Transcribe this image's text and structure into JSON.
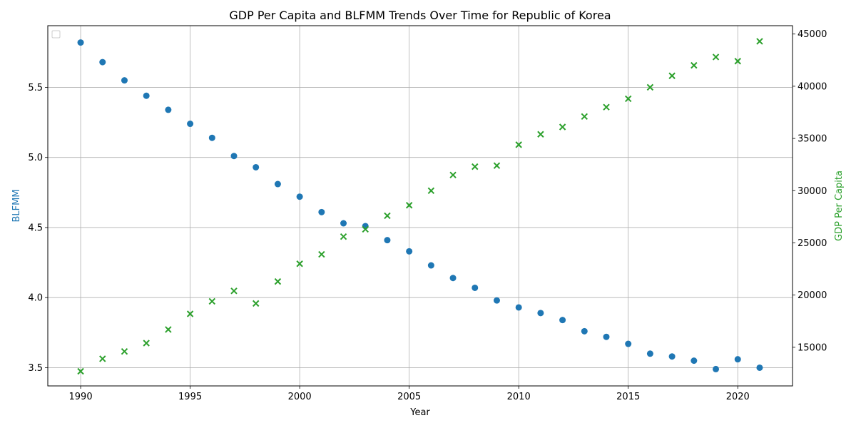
{
  "chart_data": {
    "type": "scatter",
    "title": "GDP Per Capita and BLFMM Trends Over Time for Republic of Korea",
    "xlabel": "Year",
    "ylabel_left": "BLFMM",
    "ylabel_right": "GDP Per Capita",
    "xlim": [
      1988.5,
      2022.5
    ],
    "ylim_left": [
      3.37,
      5.94
    ],
    "ylim_right": [
      11300,
      45800
    ],
    "x_ticks": [
      1990,
      1995,
      2000,
      2005,
      2010,
      2015,
      2020
    ],
    "y_ticks_left": [
      3.5,
      4.0,
      4.5,
      5.0,
      5.5
    ],
    "y_ticks_right": [
      15000,
      20000,
      25000,
      30000,
      35000,
      40000,
      45000
    ],
    "grid": true,
    "legend": "top-left (empty)",
    "colors": {
      "blfmm": "#1f77b4",
      "gdp": "#2ca02c"
    },
    "series": [
      {
        "name": "BLFMM",
        "axis": "left",
        "marker": "circle",
        "x": [
          1990,
          1991,
          1992,
          1993,
          1994,
          1995,
          1996,
          1997,
          1998,
          1999,
          2000,
          2001,
          2002,
          2003,
          2004,
          2005,
          2006,
          2007,
          2008,
          2009,
          2010,
          2011,
          2012,
          2013,
          2014,
          2015,
          2016,
          2017,
          2018,
          2019,
          2020,
          2021
        ],
        "values": [
          5.82,
          5.68,
          5.55,
          5.44,
          5.34,
          5.24,
          5.14,
          5.01,
          4.93,
          4.81,
          4.72,
          4.61,
          4.53,
          4.51,
          4.41,
          4.33,
          4.23,
          4.14,
          4.07,
          3.98,
          3.93,
          3.89,
          3.84,
          3.76,
          3.72,
          3.67,
          3.6,
          3.58,
          3.55,
          3.49,
          3.56,
          3.5
        ]
      },
      {
        "name": "GDP Per Capita",
        "axis": "right",
        "marker": "x",
        "x": [
          1990,
          1991,
          1992,
          1993,
          1994,
          1995,
          1996,
          1997,
          1998,
          1999,
          2000,
          2001,
          2002,
          2003,
          2004,
          2005,
          2006,
          2007,
          2008,
          2009,
          2010,
          2011,
          2012,
          2013,
          2014,
          2015,
          2016,
          2017,
          2018,
          2019,
          2020,
          2021
        ],
        "values": [
          12700,
          13900,
          14600,
          15400,
          16700,
          18200,
          19400,
          20400,
          19200,
          21300,
          23000,
          23900,
          25600,
          26300,
          27600,
          28600,
          30000,
          31500,
          32300,
          32400,
          34400,
          35400,
          36100,
          37100,
          38000,
          38800,
          39900,
          41000,
          42000,
          42800,
          42400,
          44300
        ]
      }
    ]
  }
}
